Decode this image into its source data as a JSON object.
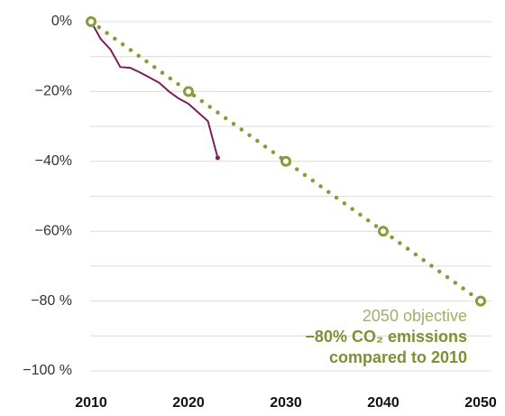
{
  "chart_data": {
    "type": "line",
    "x": [
      2010,
      2011,
      2012,
      2013,
      2014,
      2015,
      2016,
      2017,
      2018,
      2019,
      2020,
      2021,
      2022,
      2023
    ],
    "series": [
      {
        "color": "#7b1f5a",
        "x": [
          2010,
          2011,
          2012,
          2013,
          2014,
          2015,
          2016,
          2017,
          2018,
          2019,
          2020,
          2021,
          2022,
          2023
        ],
        "values": [
          0,
          -5,
          -8,
          -13,
          -13.2,
          -14.5,
          -16,
          -17.5,
          -20,
          -22,
          -23.5,
          -26,
          -28.5,
          -39
        ],
        "style": "solid"
      },
      {
        "color": "#8a9a3b",
        "x": [
          2010,
          2020,
          2030,
          2040,
          2050
        ],
        "values": [
          0,
          -20,
          -40,
          -60,
          -80
        ],
        "style": "dotted"
      }
    ],
    "xlim": [
      2010,
      2050
    ],
    "xticks": [
      2010,
      2020,
      2030,
      2040,
      2050
    ],
    "ylim": [
      -100,
      0
    ],
    "yticks": [
      {
        "value": 0,
        "label": "0%"
      },
      {
        "value": -20,
        "label": "−20%"
      },
      {
        "value": -40,
        "label": "−40%"
      },
      {
        "value": -60,
        "label": "−60%"
      },
      {
        "value": -80,
        "label": "−80 %"
      },
      {
        "value": -100,
        "label": "−100 %"
      }
    ],
    "minor_yticks": [
      -10,
      -30,
      -50,
      -70,
      -90
    ],
    "grid": true,
    "annotations": [
      {
        "text": "2050 objective",
        "color": "#a3ae6a",
        "bold": false
      },
      {
        "text": "−80% CO₂ emissions",
        "color": "#7f8f33",
        "bold": true
      },
      {
        "text": "compared to 2010",
        "color": "#7f8f33",
        "bold": true
      }
    ]
  }
}
